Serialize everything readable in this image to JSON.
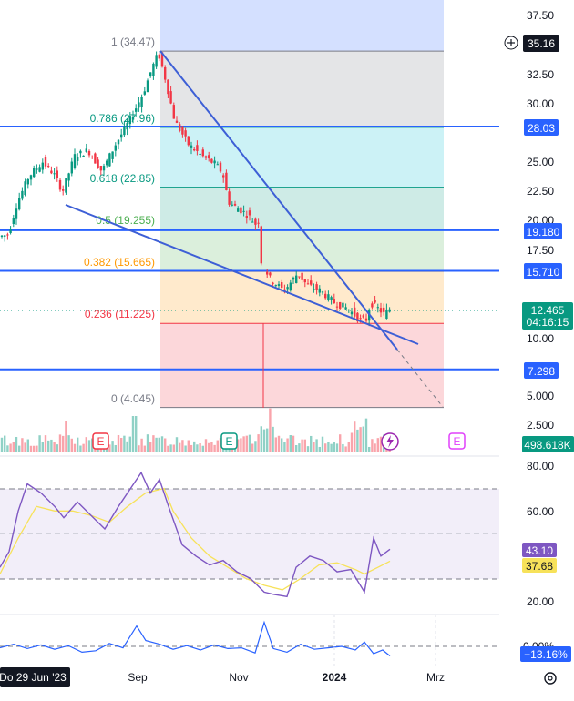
{
  "chart_data": {
    "type": "candlestick",
    "price_axis": {
      "ticks": [
        "37.50",
        "35.00",
        "32.50",
        "30.00",
        "27.50",
        "25.00",
        "22.50",
        "20.00",
        "17.50",
        "15.00",
        "12.50",
        "10.00",
        "7.500",
        "5.000",
        "2.500"
      ],
      "crosshair_value": "35.16"
    },
    "time_axis": {
      "labels": [
        "Do 29 Jun '23",
        "Sep",
        "Nov",
        "2024",
        "Mrz"
      ]
    },
    "fib_levels": [
      {
        "label": "1 (34.47)",
        "value": 34.47,
        "color": "#787b86"
      },
      {
        "label": "0.786 (27.96)",
        "value": 27.96,
        "color": "#089981"
      },
      {
        "label": "0.618 (22.85)",
        "value": 22.85,
        "color": "#089981"
      },
      {
        "label": "0.5 (19.255)",
        "value": 19.255,
        "color": "#4caf50"
      },
      {
        "label": "0.382 (15.665)",
        "value": 15.665,
        "color": "#ff9800"
      },
      {
        "label": "0.236 (11.225)",
        "value": 11.225,
        "color": "#f23645"
      },
      {
        "label": "0 (4.045)",
        "value": 4.045,
        "color": "#787b86"
      }
    ],
    "horizontal_lines": [
      {
        "label": "28.03",
        "value": 28.03
      },
      {
        "label": "19.180",
        "value": 19.18
      },
      {
        "label": "15.710",
        "value": 15.71
      },
      {
        "label": "7.298",
        "value": 7.298
      }
    ],
    "last_price": {
      "label": "12.465",
      "value": 12.465,
      "countdown": "04:16:15"
    },
    "volume_label": "498.618K",
    "event_markers": [
      "E",
      "E",
      "E"
    ],
    "rsi": {
      "ticks": [
        "80.00",
        "60.00",
        "20.00"
      ],
      "rsi_value": "43.10",
      "ma_value": "37.68",
      "upper": 70,
      "lower": 30,
      "mid": 50
    },
    "oscillator": {
      "value_label": "−13.16%",
      "zero_label": "0.00%"
    }
  }
}
